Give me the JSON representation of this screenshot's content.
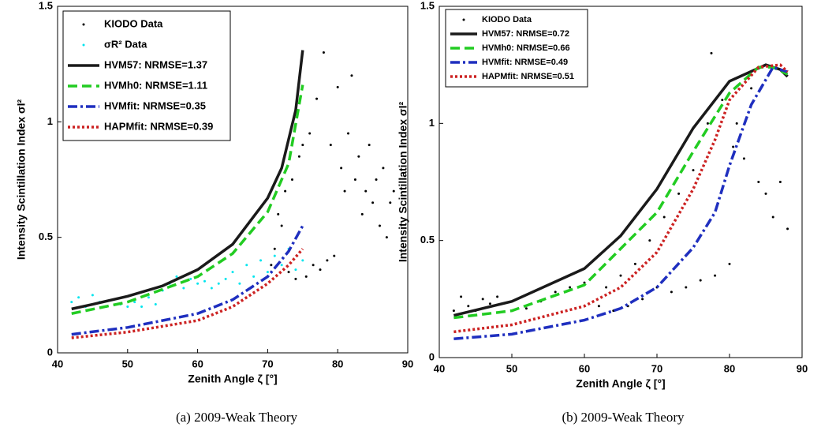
{
  "chart_data": [
    {
      "type": "line",
      "caption": "(a)  2009-Weak Theory",
      "xlabel": "Zenith Angle ζ [°]",
      "ylabel": "Intensity Scintillation Index σI²",
      "xlim": [
        40,
        90
      ],
      "ylim": [
        0,
        1.5
      ],
      "xticks": [
        40,
        50,
        60,
        70,
        80,
        90
      ],
      "yticks": [
        0,
        0.5,
        1,
        1.5
      ],
      "series": [
        {
          "name": "KIODO Data",
          "type": "scatter",
          "color": "#000000",
          "x": [
            70.5,
            71,
            71.5,
            72,
            72.5,
            73,
            73.5,
            74,
            74.5,
            75,
            75.5,
            76,
            76.5,
            77,
            77.5,
            78,
            78.5,
            79,
            79.5,
            80,
            80.5,
            81,
            81.5,
            82,
            82.5,
            83,
            83.5,
            84,
            84.5,
            85,
            85.5,
            86,
            86.5,
            87,
            87.5,
            88
          ],
          "values": [
            0.38,
            0.45,
            0.6,
            0.55,
            0.7,
            0.35,
            0.75,
            0.32,
            0.85,
            0.9,
            0.33,
            0.95,
            0.38,
            1.1,
            0.36,
            1.3,
            0.4,
            0.9,
            0.42,
            1.15,
            0.8,
            0.7,
            0.95,
            1.2,
            0.75,
            0.85,
            0.6,
            0.7,
            0.9,
            0.65,
            0.75,
            0.55,
            0.8,
            0.5,
            0.65,
            0.7
          ]
        },
        {
          "name": "σR² Data",
          "type": "scatter",
          "color": "#00e5ee",
          "x": [
            42,
            43,
            44,
            45,
            46,
            47,
            48,
            49,
            50,
            51,
            52,
            53,
            54,
            55,
            56,
            57,
            58,
            59,
            60,
            61,
            62,
            63,
            64,
            65,
            66,
            67,
            68,
            69,
            70,
            71,
            72,
            73,
            74,
            75
          ],
          "values": [
            0.22,
            0.24,
            0.2,
            0.25,
            0.22,
            0.2,
            0.23,
            0.21,
            0.2,
            0.22,
            0.2,
            0.24,
            0.21,
            0.27,
            0.3,
            0.33,
            0.28,
            0.32,
            0.3,
            0.31,
            0.28,
            0.3,
            0.32,
            0.35,
            0.3,
            0.38,
            0.33,
            0.4,
            0.35,
            0.42,
            0.38,
            0.45,
            0.36,
            0.4
          ]
        },
        {
          "name": "HVM57: NRMSE=1.37",
          "type": "line",
          "linestyle": "solid",
          "color": "#1a1a1a",
          "x": [
            42,
            45,
            50,
            55,
            60,
            65,
            70,
            72,
            74,
            75
          ],
          "values": [
            0.19,
            0.21,
            0.245,
            0.29,
            0.36,
            0.47,
            0.67,
            0.8,
            1.05,
            1.31
          ]
        },
        {
          "name": "HVMh0: NRMSE=1.11",
          "type": "line",
          "linestyle": "dashed",
          "color": "#22cc22",
          "x": [
            42,
            50,
            60,
            65,
            70,
            73,
            75
          ],
          "values": [
            0.17,
            0.22,
            0.33,
            0.43,
            0.61,
            0.82,
            1.16
          ]
        },
        {
          "name": "HVMfit: NRMSE=0.35",
          "type": "line",
          "linestyle": "dashdot",
          "color": "#1f2fbf",
          "x": [
            42,
            50,
            60,
            65,
            70,
            73,
            75
          ],
          "values": [
            0.08,
            0.11,
            0.17,
            0.23,
            0.33,
            0.44,
            0.55
          ]
        },
        {
          "name": "HAPMfit: NRMSE=0.39",
          "type": "line",
          "linestyle": "dotted",
          "color": "#cc2222",
          "x": [
            42,
            50,
            60,
            65,
            70,
            73,
            75
          ],
          "values": [
            0.065,
            0.09,
            0.14,
            0.2,
            0.3,
            0.38,
            0.45
          ]
        }
      ]
    },
    {
      "type": "line",
      "caption": "(b)  2009-Weak Theory",
      "xlabel": "Zenith Angle ζ [°]",
      "ylabel": "Intensity Scintillation Index σI²",
      "xlim": [
        40,
        90
      ],
      "ylim": [
        0,
        1.5
      ],
      "xticks": [
        40,
        50,
        60,
        70,
        80,
        90
      ],
      "yticks": [
        0,
        0.5,
        1,
        1.5
      ],
      "series": [
        {
          "name": "KIODO Data",
          "type": "scatter",
          "color": "#000000",
          "x": [
            42,
            43,
            44,
            45,
            46,
            47,
            48,
            50,
            52,
            54,
            56,
            58,
            60,
            62,
            63,
            64,
            65,
            66,
            67,
            68,
            69,
            70,
            71,
            72,
            73,
            74,
            75,
            76,
            77,
            77.5,
            78,
            79,
            80,
            80.5,
            81,
            82,
            83,
            84,
            85,
            86,
            87,
            88
          ],
          "values": [
            0.2,
            0.26,
            0.22,
            0.2,
            0.25,
            0.23,
            0.26,
            0.2,
            0.21,
            0.24,
            0.28,
            0.3,
            0.32,
            0.22,
            0.3,
            0.2,
            0.35,
            0.22,
            0.4,
            0.25,
            0.5,
            0.3,
            0.6,
            0.28,
            0.7,
            0.3,
            0.8,
            0.33,
            1.0,
            1.3,
            0.35,
            1.1,
            0.4,
            0.9,
            1.0,
            0.85,
            1.15,
            0.75,
            0.7,
            0.6,
            0.75,
            0.55
          ]
        },
        {
          "name": "HVM57: NRMSE=0.72",
          "type": "line",
          "linestyle": "solid",
          "color": "#1a1a1a",
          "x": [
            42,
            50,
            60,
            65,
            70,
            75,
            80,
            85,
            87,
            88
          ],
          "values": [
            0.18,
            0.24,
            0.38,
            0.52,
            0.72,
            0.98,
            1.18,
            1.25,
            1.23,
            1.2
          ]
        },
        {
          "name": "HVMh0: NRMSE=0.66",
          "type": "line",
          "linestyle": "dashed",
          "color": "#22cc22",
          "x": [
            42,
            50,
            60,
            70,
            75,
            80,
            84,
            86,
            88
          ],
          "values": [
            0.17,
            0.2,
            0.31,
            0.62,
            0.88,
            1.13,
            1.24,
            1.24,
            1.21
          ]
        },
        {
          "name": "HVMfit: NRMSE=0.49",
          "type": "line",
          "linestyle": "dashdot",
          "color": "#1f2fbf",
          "x": [
            42,
            50,
            60,
            65,
            70,
            75,
            78,
            80,
            83,
            86,
            88
          ],
          "values": [
            0.08,
            0.1,
            0.16,
            0.21,
            0.3,
            0.47,
            0.62,
            0.82,
            1.08,
            1.24,
            1.22
          ]
        },
        {
          "name": "HAPMfit: NRMSE=0.51",
          "type": "line",
          "linestyle": "dotted",
          "color": "#cc2222",
          "x": [
            42,
            50,
            60,
            65,
            70,
            75,
            78,
            80,
            84,
            87,
            88
          ],
          "values": [
            0.11,
            0.14,
            0.22,
            0.3,
            0.45,
            0.72,
            0.93,
            1.1,
            1.24,
            1.25,
            1.22
          ]
        }
      ]
    }
  ]
}
